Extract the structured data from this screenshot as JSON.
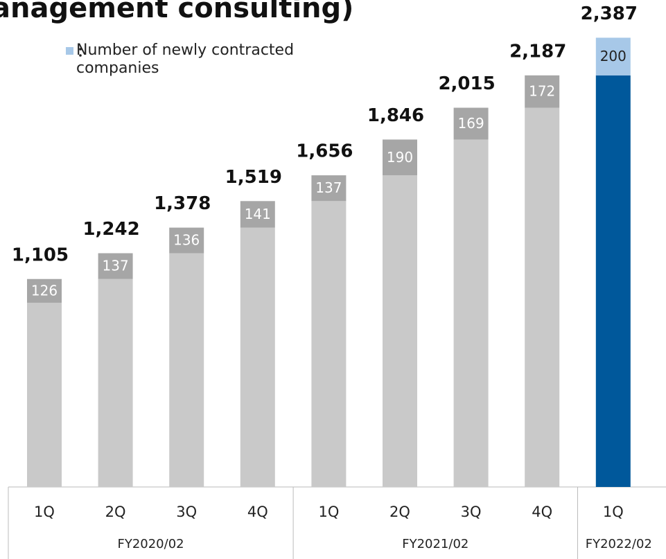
{
  "chart_data": {
    "type": "stacked-bar",
    "title": "anagement consulting)",
    "groups": [
      {
        "label": "FY2020/02",
        "categories": [
          "1Q",
          "2Q",
          "3Q",
          "4Q"
        ]
      },
      {
        "label": "FY2021/02",
        "categories": [
          "1Q",
          "2Q",
          "3Q",
          "4Q"
        ]
      },
      {
        "label": "FY2022/02",
        "categories": [
          "1Q"
        ]
      }
    ],
    "series": [
      {
        "colors": [
          "#c9c9c9",
          "#c9c9c9",
          "#c9c9c9",
          "#c9c9c9",
          "#c9c9c9",
          "#c9c9c9",
          "#c9c9c9",
          "#c9c9c9",
          "#00589b"
        ],
        "values": [
          979,
          1105,
          1242,
          1378,
          1519,
          1656,
          1846,
          2015,
          2187
        ]
      },
      {
        "name": "Number of newly contracted companies",
        "color": "#a7c8e8",
        "colors": [
          "#a6a6a6",
          "#a6a6a6",
          "#a6a6a6",
          "#a6a6a6",
          "#a6a6a6",
          "#a6a6a6",
          "#a6a6a6",
          "#a6a6a6",
          "#a7c8e8"
        ],
        "label_colors": [
          "#ffffff",
          "#ffffff",
          "#ffffff",
          "#ffffff",
          "#ffffff",
          "#ffffff",
          "#ffffff",
          "#ffffff",
          "#222222"
        ],
        "values": [
          126,
          137,
          136,
          141,
          137,
          190,
          169,
          172,
          200
        ]
      }
    ],
    "totals": [
      1105,
      1242,
      1378,
      1519,
      1656,
      1846,
      2015,
      2187,
      2387
    ],
    "total_labels": [
      "1,105",
      "1,242",
      "1,378",
      "1,519",
      "1,656",
      "1,846",
      "2,015",
      "2,187",
      "2,387"
    ]
  }
}
